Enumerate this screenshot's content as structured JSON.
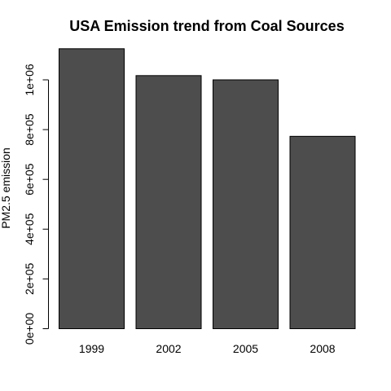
{
  "chart_data": {
    "type": "bar",
    "title": "USA Emission trend from Coal Sources",
    "xlabel": "",
    "ylabel": "PM2.5 emission",
    "categories": [
      "1999",
      "2002",
      "2005",
      "2008"
    ],
    "values": [
      1125000,
      1017000,
      1000000,
      773000
    ],
    "ylim": [
      0,
      1200000
    ],
    "yticks": [
      0,
      200000,
      400000,
      600000,
      800000,
      1000000
    ],
    "ytick_labels": [
      "0e+00",
      "2e+05",
      "4e+05",
      "6e+05",
      "8e+05",
      "1e+06"
    ],
    "bar_color": "#4d4d4d",
    "grid": false,
    "legend": "none"
  }
}
